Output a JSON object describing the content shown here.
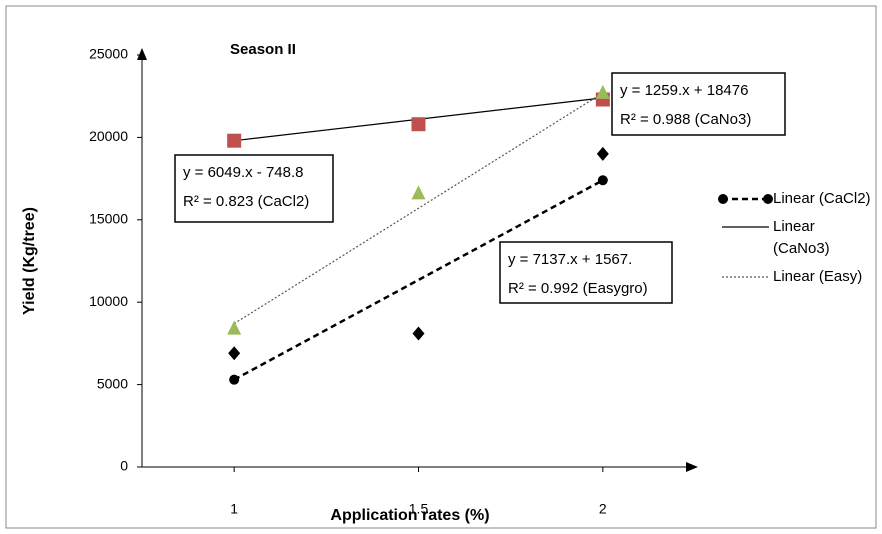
{
  "chart_data": {
    "type": "scatter",
    "title": "Season II",
    "x_label": "Application rates (%)",
    "y_label": "Yield (Kg/tree)",
    "xlim": [
      0.75,
      2.25
    ],
    "xticks": [
      1,
      1.5,
      2
    ],
    "ylim": [
      0,
      25000
    ],
    "yticks": [
      0,
      5000,
      10000,
      15000,
      20000,
      25000
    ],
    "series": [
      {
        "x": [
          1,
          1.5,
          2
        ],
        "values": [
          6900,
          8100,
          19000
        ],
        "color": "#000000",
        "marker": "diamond"
      },
      {
        "x": [
          1,
          1.5,
          2
        ],
        "values": [
          19800,
          20800,
          22300
        ],
        "color": "#c0504d",
        "marker": "square"
      },
      {
        "x": [
          1,
          1.5,
          2
        ],
        "values": [
          8400,
          16600,
          22700
        ],
        "color": "#9bbb59",
        "marker": "triangle"
      },
      {
        "name": "Linear (CaCl2)",
        "x": [
          1,
          2
        ],
        "values": [
          5300,
          17400
        ],
        "color": "#000000",
        "dash": "dashed",
        "marker": "circle"
      },
      {
        "name": "Linear (CaNo3)",
        "x": [
          1,
          2
        ],
        "values": [
          19800,
          22400
        ],
        "color": "#000000",
        "dash": "solid"
      },
      {
        "name": "Linear (Easy)",
        "x": [
          1,
          2
        ],
        "values": [
          8700,
          22700
        ],
        "color": "#555555",
        "dash": "dotted"
      }
    ],
    "annotations": [
      {
        "lines": [
          "y = 6049.x - 748.8",
          "R² = 0.823 (CaCl2)"
        ]
      },
      {
        "lines": [
          "y = 1259.x + 18476",
          "R² = 0.988 (CaNo3)"
        ]
      },
      {
        "lines": [
          "y = 7137.x + 1567.",
          "R² = 0.992 (Easygro)"
        ]
      }
    ]
  }
}
